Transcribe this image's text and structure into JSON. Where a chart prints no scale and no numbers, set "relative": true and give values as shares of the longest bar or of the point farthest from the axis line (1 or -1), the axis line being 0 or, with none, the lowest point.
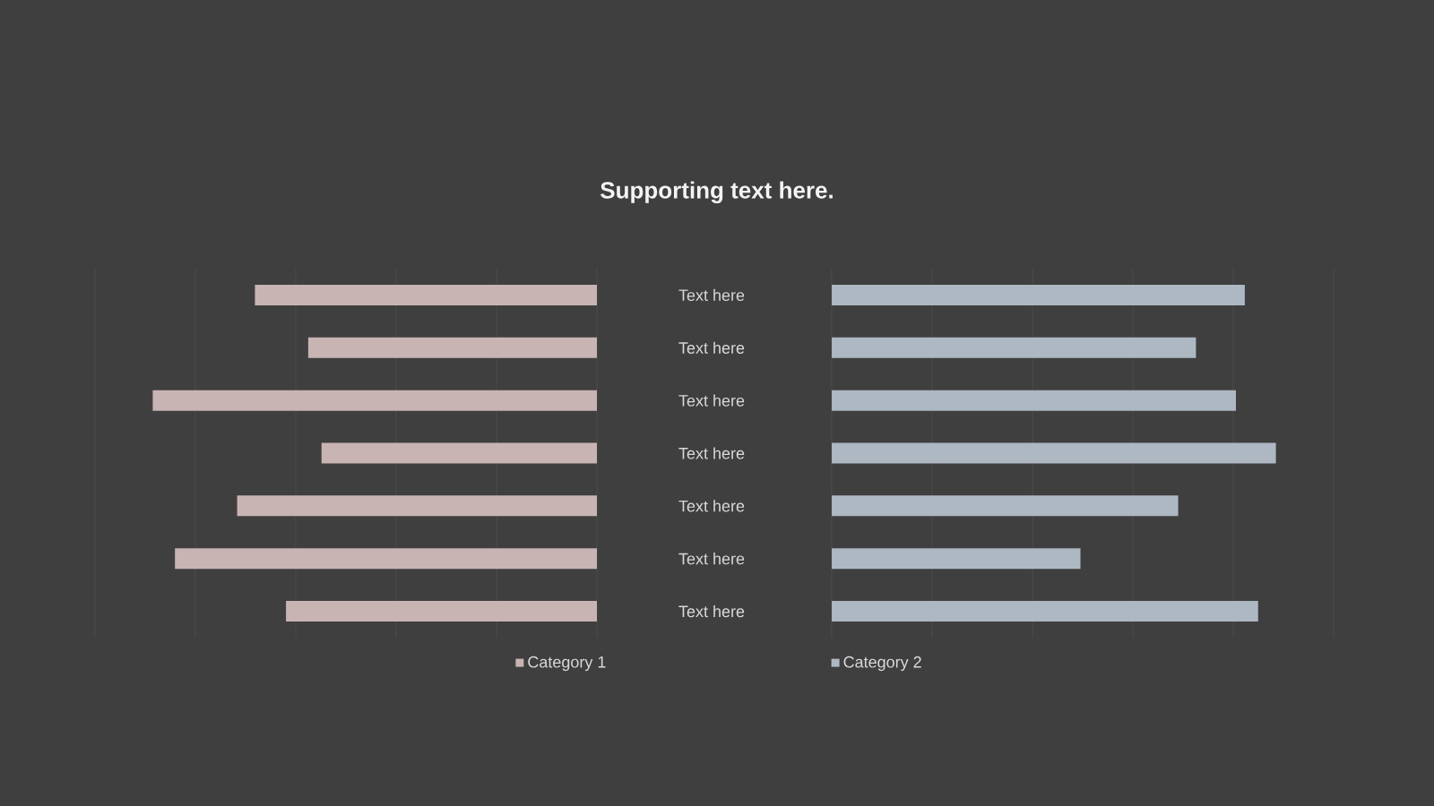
{
  "chart_data": [
    {
      "type": "bar",
      "orientation": "horizontal",
      "relative": true,
      "title": "Supporting text here.",
      "categories": [
        "Text here",
        "Text here",
        "Text here",
        "Text here",
        "Text here",
        "Text here",
        "Text here"
      ],
      "series": [
        {
          "name": "Category 1",
          "color": "#c9b4b4",
          "values": [
            0.77,
            0.65,
            1.0,
            0.62,
            0.81,
            0.95,
            0.7
          ]
        }
      ],
      "grid": "x",
      "legend": "bottom"
    },
    {
      "type": "bar",
      "orientation": "horizontal",
      "relative": true,
      "categories": [
        null,
        null,
        null,
        null,
        null,
        null,
        null
      ],
      "series": [
        {
          "name": "Category 2",
          "color": "#aeb8c3",
          "values": [
            0.93,
            0.82,
            0.91,
            1.0,
            0.78,
            0.56,
            0.96
          ]
        }
      ],
      "grid": "x",
      "legend": "bottom"
    }
  ]
}
